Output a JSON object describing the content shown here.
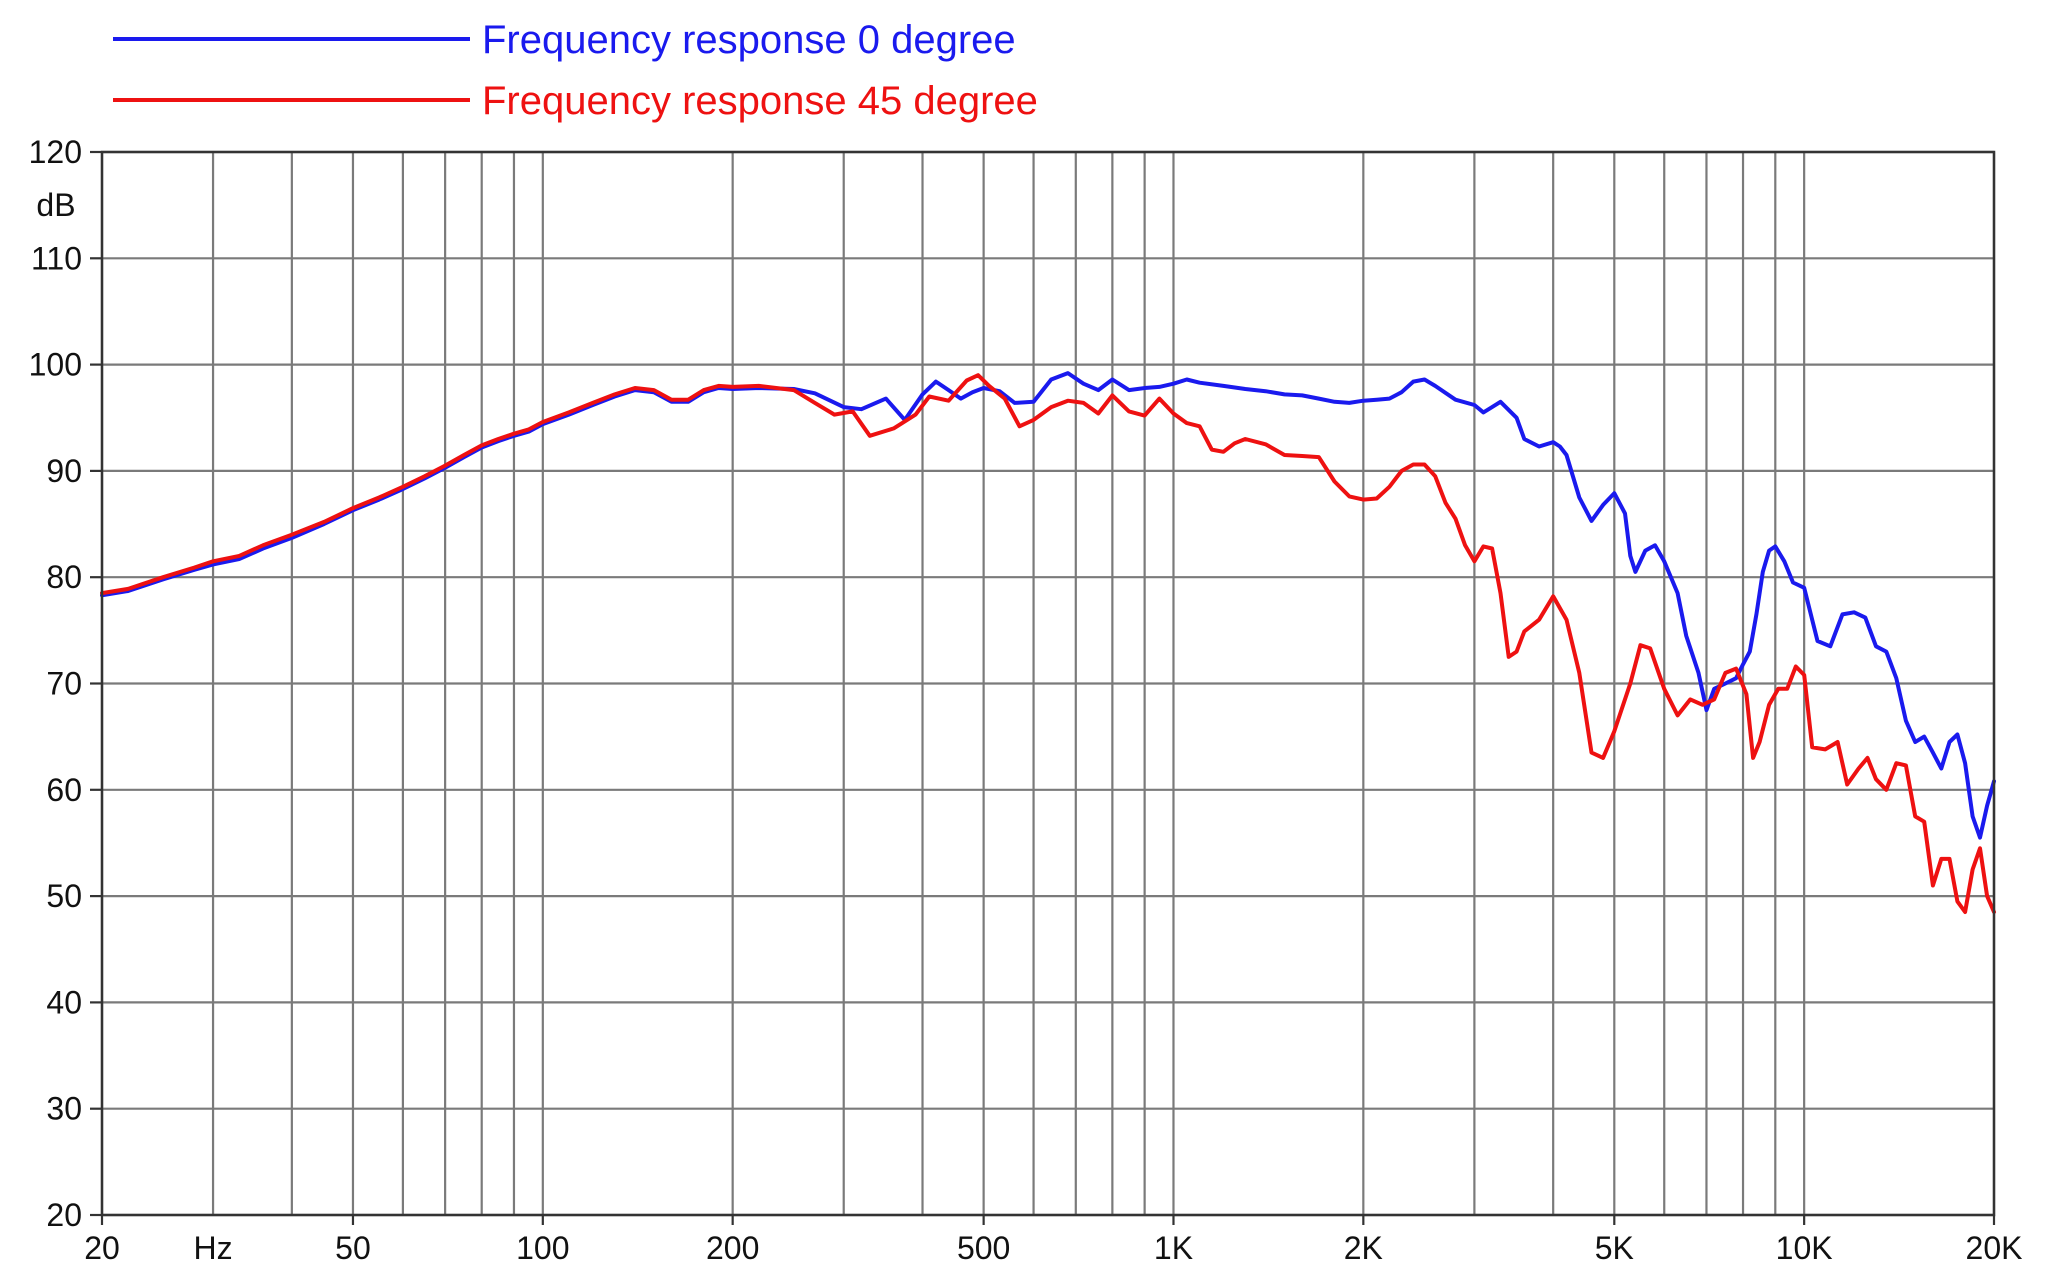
{
  "chart_data": {
    "type": "line",
    "xscale": "log",
    "xlim": [
      20,
      20000
    ],
    "ylim": [
      20,
      120
    ],
    "grid": true,
    "legend_position": "top-left",
    "ylabel": "dB",
    "xlabel": "Hz",
    "x_ticks": [
      {
        "value": 20,
        "label": "20",
        "color": "#1a1aff"
      },
      {
        "value": 50,
        "label": "50",
        "color": "#111111"
      },
      {
        "value": 100,
        "label": "100",
        "color": "#111111"
      },
      {
        "value": 200,
        "label": "200",
        "color": "#111111"
      },
      {
        "value": 500,
        "label": "500",
        "color": "#111111"
      },
      {
        "value": 1000,
        "label": "1K",
        "color": "#111111"
      },
      {
        "value": 2000,
        "label": "2K",
        "color": "#111111"
      },
      {
        "value": 5000,
        "label": "5K",
        "color": "#111111"
      },
      {
        "value": 10000,
        "label": "10K",
        "color": "#111111"
      },
      {
        "value": 20000,
        "label": "20K",
        "color": "#111111"
      }
    ],
    "x_unit_tick": {
      "value": 30,
      "label": "Hz",
      "color": "#1a1aff"
    },
    "y_ticks": [
      {
        "value": 120,
        "label": "120"
      },
      {
        "value": 110,
        "label": "110"
      },
      {
        "value": 100,
        "label": "100"
      },
      {
        "value": 90,
        "label": "90"
      },
      {
        "value": 80,
        "label": "80"
      },
      {
        "value": 70,
        "label": "70"
      },
      {
        "value": 60,
        "label": "60"
      },
      {
        "value": 50,
        "label": "50"
      },
      {
        "value": 40,
        "label": "40"
      },
      {
        "value": 30,
        "label": "30"
      },
      {
        "value": 20,
        "label": "20"
      }
    ],
    "series": [
      {
        "name": "Frequency response 0 degree",
        "color": "#1a1aee",
        "points": [
          [
            20,
            78.3
          ],
          [
            22,
            78.7
          ],
          [
            25,
            79.8
          ],
          [
            28,
            80.7
          ],
          [
            30,
            81.2
          ],
          [
            33,
            81.7
          ],
          [
            36,
            82.7
          ],
          [
            40,
            83.7
          ],
          [
            45,
            85.0
          ],
          [
            50,
            86.3
          ],
          [
            55,
            87.3
          ],
          [
            60,
            88.3
          ],
          [
            65,
            89.3
          ],
          [
            70,
            90.3
          ],
          [
            75,
            91.3
          ],
          [
            80,
            92.2
          ],
          [
            85,
            92.8
          ],
          [
            90,
            93.3
          ],
          [
            95,
            93.7
          ],
          [
            100,
            94.4
          ],
          [
            110,
            95.3
          ],
          [
            120,
            96.2
          ],
          [
            130,
            97.0
          ],
          [
            140,
            97.6
          ],
          [
            150,
            97.4
          ],
          [
            160,
            96.5
          ],
          [
            170,
            96.5
          ],
          [
            180,
            97.4
          ],
          [
            190,
            97.8
          ],
          [
            200,
            97.7
          ],
          [
            220,
            97.8
          ],
          [
            250,
            97.7
          ],
          [
            270,
            97.3
          ],
          [
            300,
            96.0
          ],
          [
            320,
            95.8
          ],
          [
            350,
            96.8
          ],
          [
            375,
            94.8
          ],
          [
            400,
            97.2
          ],
          [
            420,
            98.4
          ],
          [
            440,
            97.6
          ],
          [
            460,
            96.8
          ],
          [
            480,
            97.4
          ],
          [
            500,
            97.8
          ],
          [
            530,
            97.5
          ],
          [
            560,
            96.4
          ],
          [
            600,
            96.5
          ],
          [
            640,
            98.6
          ],
          [
            680,
            99.2
          ],
          [
            720,
            98.2
          ],
          [
            760,
            97.6
          ],
          [
            800,
            98.6
          ],
          [
            850,
            97.6
          ],
          [
            900,
            97.8
          ],
          [
            950,
            97.9
          ],
          [
            1000,
            98.2
          ],
          [
            1050,
            98.6
          ],
          [
            1100,
            98.3
          ],
          [
            1200,
            98.0
          ],
          [
            1300,
            97.7
          ],
          [
            1400,
            97.5
          ],
          [
            1500,
            97.2
          ],
          [
            1600,
            97.1
          ],
          [
            1700,
            96.8
          ],
          [
            1800,
            96.5
          ],
          [
            1900,
            96.4
          ],
          [
            2000,
            96.6
          ],
          [
            2100,
            96.7
          ],
          [
            2200,
            96.8
          ],
          [
            2300,
            97.4
          ],
          [
            2400,
            98.4
          ],
          [
            2500,
            98.6
          ],
          [
            2600,
            98.0
          ],
          [
            2800,
            96.7
          ],
          [
            3000,
            96.2
          ],
          [
            3100,
            95.5
          ],
          [
            3200,
            96.0
          ],
          [
            3300,
            96.5
          ],
          [
            3500,
            95.0
          ],
          [
            3600,
            93.0
          ],
          [
            3800,
            92.3
          ],
          [
            4000,
            92.7
          ],
          [
            4100,
            92.3
          ],
          [
            4200,
            91.5
          ],
          [
            4400,
            87.5
          ],
          [
            4600,
            85.3
          ],
          [
            4800,
            86.8
          ],
          [
            5000,
            87.9
          ],
          [
            5200,
            86.0
          ],
          [
            5300,
            82.0
          ],
          [
            5400,
            80.5
          ],
          [
            5600,
            82.5
          ],
          [
            5800,
            83.0
          ],
          [
            6000,
            81.5
          ],
          [
            6300,
            78.5
          ],
          [
            6500,
            74.5
          ],
          [
            6800,
            71.0
          ],
          [
            7000,
            67.5
          ],
          [
            7200,
            69.5
          ],
          [
            7500,
            70.0
          ],
          [
            7800,
            70.5
          ],
          [
            8000,
            71.8
          ],
          [
            8200,
            73.0
          ],
          [
            8400,
            76.5
          ],
          [
            8600,
            80.5
          ],
          [
            8800,
            82.5
          ],
          [
            9000,
            82.9
          ],
          [
            9300,
            81.5
          ],
          [
            9600,
            79.5
          ],
          [
            10000,
            79.0
          ],
          [
            10500,
            74.0
          ],
          [
            11000,
            73.5
          ],
          [
            11500,
            76.5
          ],
          [
            12000,
            76.7
          ],
          [
            12500,
            76.2
          ],
          [
            13000,
            73.5
          ],
          [
            13500,
            73.0
          ],
          [
            14000,
            70.5
          ],
          [
            14500,
            66.5
          ],
          [
            15000,
            64.5
          ],
          [
            15500,
            65.0
          ],
          [
            16000,
            63.5
          ],
          [
            16500,
            62.0
          ],
          [
            17000,
            64.5
          ],
          [
            17500,
            65.2
          ],
          [
            18000,
            62.5
          ],
          [
            18500,
            57.5
          ],
          [
            19000,
            55.5
          ],
          [
            19500,
            58.5
          ],
          [
            20000,
            60.8
          ]
        ]
      },
      {
        "name": "Frequency response 45 degree",
        "color": "#ee1111",
        "points": [
          [
            20,
            78.5
          ],
          [
            22,
            78.9
          ],
          [
            25,
            80.0
          ],
          [
            28,
            80.9
          ],
          [
            30,
            81.5
          ],
          [
            33,
            82.0
          ],
          [
            36,
            83.0
          ],
          [
            40,
            84.0
          ],
          [
            45,
            85.2
          ],
          [
            50,
            86.5
          ],
          [
            55,
            87.5
          ],
          [
            60,
            88.5
          ],
          [
            65,
            89.5
          ],
          [
            70,
            90.5
          ],
          [
            75,
            91.5
          ],
          [
            80,
            92.4
          ],
          [
            85,
            93.0
          ],
          [
            90,
            93.5
          ],
          [
            95,
            93.9
          ],
          [
            100,
            94.6
          ],
          [
            110,
            95.5
          ],
          [
            120,
            96.4
          ],
          [
            130,
            97.2
          ],
          [
            140,
            97.8
          ],
          [
            150,
            97.6
          ],
          [
            160,
            96.7
          ],
          [
            170,
            96.7
          ],
          [
            180,
            97.6
          ],
          [
            190,
            98.0
          ],
          [
            200,
            97.9
          ],
          [
            220,
            98.0
          ],
          [
            250,
            97.6
          ],
          [
            270,
            96.4
          ],
          [
            290,
            95.3
          ],
          [
            310,
            95.6
          ],
          [
            330,
            93.3
          ],
          [
            360,
            94.0
          ],
          [
            390,
            95.3
          ],
          [
            410,
            97.0
          ],
          [
            440,
            96.6
          ],
          [
            470,
            98.5
          ],
          [
            490,
            99.0
          ],
          [
            510,
            98.0
          ],
          [
            540,
            96.8
          ],
          [
            570,
            94.2
          ],
          [
            600,
            94.8
          ],
          [
            640,
            96.0
          ],
          [
            680,
            96.6
          ],
          [
            720,
            96.4
          ],
          [
            760,
            95.4
          ],
          [
            800,
            97.1
          ],
          [
            850,
            95.6
          ],
          [
            900,
            95.2
          ],
          [
            950,
            96.8
          ],
          [
            1000,
            95.4
          ],
          [
            1050,
            94.5
          ],
          [
            1100,
            94.2
          ],
          [
            1150,
            92.0
          ],
          [
            1200,
            91.8
          ],
          [
            1250,
            92.6
          ],
          [
            1300,
            93.0
          ],
          [
            1400,
            92.5
          ],
          [
            1500,
            91.5
          ],
          [
            1600,
            91.4
          ],
          [
            1700,
            91.3
          ],
          [
            1800,
            89.0
          ],
          [
            1900,
            87.6
          ],
          [
            2000,
            87.3
          ],
          [
            2100,
            87.4
          ],
          [
            2200,
            88.5
          ],
          [
            2300,
            90.0
          ],
          [
            2400,
            90.6
          ],
          [
            2500,
            90.6
          ],
          [
            2600,
            89.5
          ],
          [
            2700,
            87.0
          ],
          [
            2800,
            85.5
          ],
          [
            2900,
            83.0
          ],
          [
            3000,
            81.5
          ],
          [
            3100,
            82.9
          ],
          [
            3200,
            82.7
          ],
          [
            3300,
            78.5
          ],
          [
            3400,
            72.5
          ],
          [
            3500,
            73.0
          ],
          [
            3600,
            74.9
          ],
          [
            3800,
            76.0
          ],
          [
            4000,
            78.2
          ],
          [
            4200,
            76.0
          ],
          [
            4400,
            71.0
          ],
          [
            4600,
            63.5
          ],
          [
            4800,
            63.0
          ],
          [
            5000,
            65.5
          ],
          [
            5300,
            70.0
          ],
          [
            5500,
            73.6
          ],
          [
            5700,
            73.3
          ],
          [
            6000,
            69.5
          ],
          [
            6300,
            67.0
          ],
          [
            6600,
            68.5
          ],
          [
            6900,
            68.0
          ],
          [
            7200,
            68.5
          ],
          [
            7500,
            71.0
          ],
          [
            7800,
            71.4
          ],
          [
            8100,
            69.0
          ],
          [
            8300,
            63.0
          ],
          [
            8500,
            64.5
          ],
          [
            8800,
            68.0
          ],
          [
            9100,
            69.5
          ],
          [
            9400,
            69.5
          ],
          [
            9700,
            71.6
          ],
          [
            10000,
            70.8
          ],
          [
            10300,
            64.0
          ],
          [
            10800,
            63.8
          ],
          [
            11300,
            64.5
          ],
          [
            11700,
            60.5
          ],
          [
            12200,
            62.0
          ],
          [
            12600,
            63.0
          ],
          [
            13000,
            61.0
          ],
          [
            13500,
            60.0
          ],
          [
            14000,
            62.5
          ],
          [
            14500,
            62.3
          ],
          [
            15000,
            57.5
          ],
          [
            15500,
            57.0
          ],
          [
            16000,
            51.0
          ],
          [
            16500,
            53.5
          ],
          [
            17000,
            53.5
          ],
          [
            17500,
            49.5
          ],
          [
            18000,
            48.5
          ],
          [
            18500,
            52.5
          ],
          [
            19000,
            54.5
          ],
          [
            19500,
            50.0
          ],
          [
            20000,
            48.5
          ]
        ]
      }
    ]
  }
}
